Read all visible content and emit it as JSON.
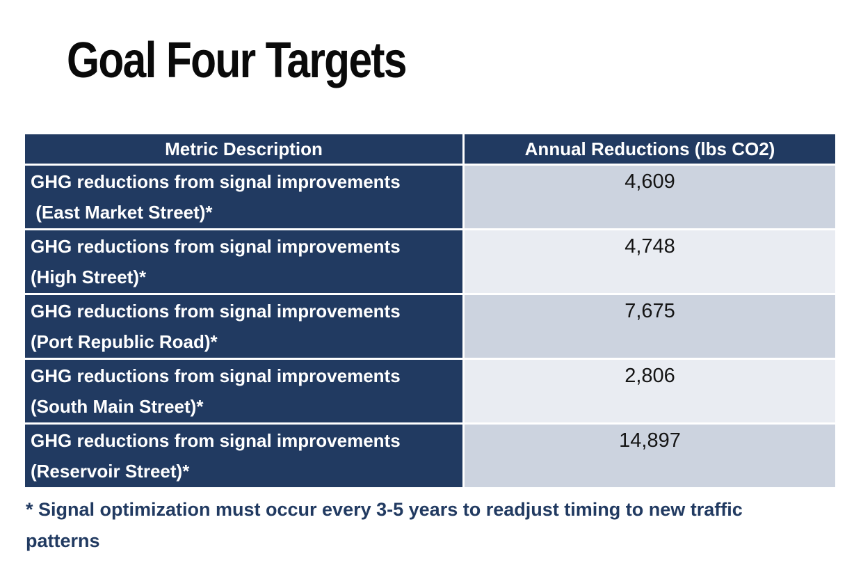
{
  "title": "Goal Four Targets",
  "colors": {
    "navy": "#213a61",
    "row_shade_dark": "#ccd3df",
    "row_shade_light": "#e9ecf2",
    "cell_border": "#ffffff",
    "title_text": "#0a0a0a"
  },
  "table": {
    "headers": [
      "Metric Description",
      "Annual Reductions (lbs CO2)"
    ],
    "rows": [
      {
        "metric": "GHG reductions from signal improvements\n (East Market Street)*",
        "value": "4,609"
      },
      {
        "metric": "GHG reductions from signal improvements\n(High Street)*",
        "value": "4,748"
      },
      {
        "metric": "GHG reductions from signal improvements\n(Port Republic Road)*",
        "value": "7,675"
      },
      {
        "metric": "GHG reductions from signal improvements\n(South Main Street)*",
        "value": "2,806"
      },
      {
        "metric": "GHG reductions from signal improvements\n(Reservoir Street)*",
        "value": "14,897"
      }
    ]
  },
  "footnote": {
    "line1": "* Signal optimization must occur every 3-5 years to readjust timing to new traffic",
    "line2": "patterns"
  }
}
